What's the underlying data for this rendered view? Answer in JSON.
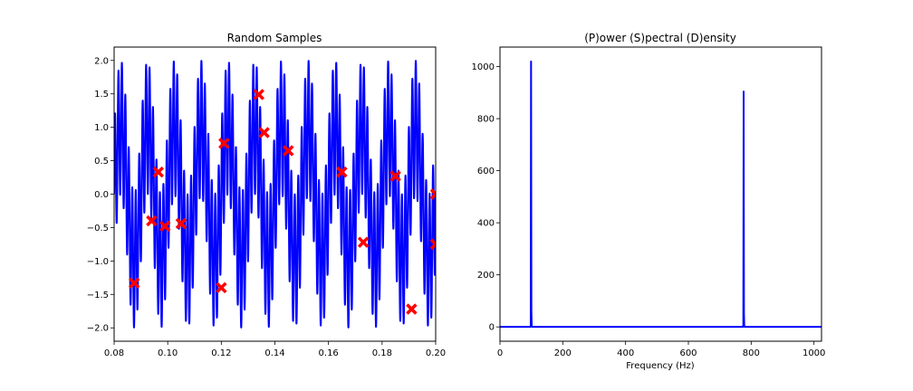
{
  "chart_data": [
    {
      "type": "line",
      "title": "Random Samples",
      "xlabel": "",
      "ylabel": "",
      "xlim": [
        0.08,
        0.2
      ],
      "ylim": [
        -2.2,
        2.2
      ],
      "x_ticks": [
        "0.08",
        "0.10",
        "0.12",
        "0.14",
        "0.16",
        "0.18",
        "0.20"
      ],
      "y_ticks": [
        "2.0",
        "1.5",
        "1.0",
        "0.5",
        "0.0",
        "−0.5",
        "−1.0",
        "−1.5",
        "−2.0"
      ],
      "grid": false,
      "series": [
        {
          "kind": "line",
          "color": "#0000ff",
          "signal": {
            "components": [
              {
                "amplitude": 1.0,
                "frequency_hz": 100
              },
              {
                "amplitude": 1.0,
                "frequency_hz": 775
              }
            ]
          }
        },
        {
          "kind": "scatter",
          "marker": "x",
          "color": "#ff0000",
          "x": [
            0.0875,
            0.094,
            0.0965,
            0.099,
            0.105,
            0.12,
            0.121,
            0.134,
            0.136,
            0.145,
            0.165,
            0.173,
            0.185,
            0.191,
            0.2,
            0.2
          ],
          "y": [
            -1.33,
            -0.4,
            0.33,
            -0.48,
            -0.44,
            -1.4,
            0.76,
            1.49,
            0.92,
            0.65,
            0.33,
            -0.72,
            0.27,
            -1.72,
            0.0,
            -0.75
          ]
        }
      ]
    },
    {
      "type": "line",
      "title": "(P)ower (S)pectral (D)ensity",
      "xlabel": "Frequency (Hz)",
      "ylabel": "",
      "xlim": [
        0,
        1024
      ],
      "ylim": [
        -55,
        1075
      ],
      "x_ticks": [
        "0",
        "200",
        "400",
        "600",
        "800",
        "1000"
      ],
      "y_ticks": [
        "1000",
        "800",
        "600",
        "400",
        "200",
        "0"
      ],
      "grid": false,
      "series": [
        {
          "kind": "line",
          "color": "#0000ff",
          "x": [
            0,
            97,
            98,
            99,
            100,
            101,
            102,
            774,
            775,
            776,
            777,
            778,
            779,
            1024
          ],
          "y": [
            0,
            0,
            6,
            1020,
            60,
            4,
            0,
            0,
            8,
            904,
            50,
            3,
            0,
            0
          ]
        }
      ]
    }
  ]
}
